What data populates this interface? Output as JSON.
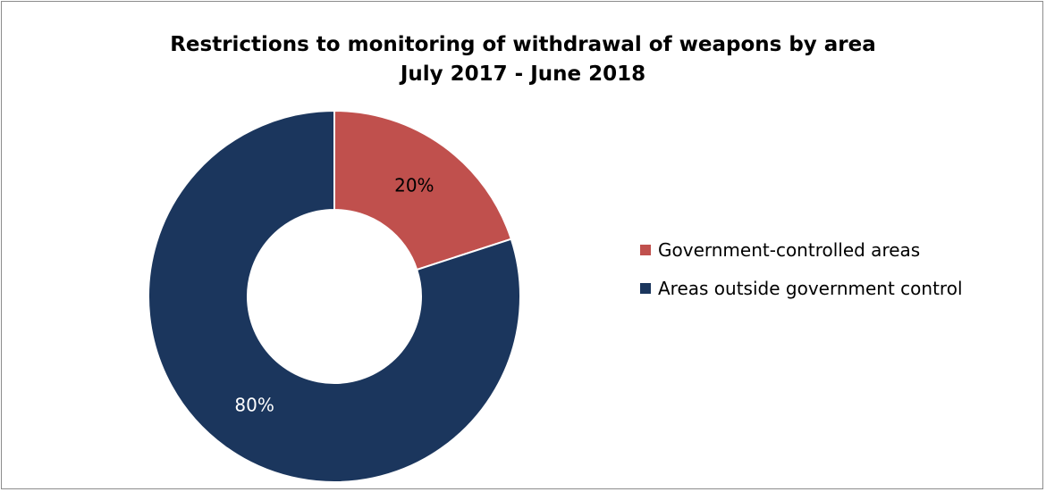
{
  "chart_data": {
    "type": "pie",
    "variant": "donut",
    "title": "Restrictions to monitoring of withdrawal of weapons by area",
    "subtitle": "July 2017 - June 2018",
    "series": [
      {
        "values": [
          20,
          80
        ],
        "labels": [
          "20%",
          "80%"
        ]
      }
    ],
    "categories": [
      "Government-controlled areas",
      "Areas outside government control"
    ],
    "colors": [
      "#c0504d",
      "#1b365d"
    ],
    "data_label_colors": [
      "#000000",
      "#ffffff"
    ],
    "legend_position": "right",
    "start_angle_deg": 0,
    "direction": "clockwise"
  }
}
